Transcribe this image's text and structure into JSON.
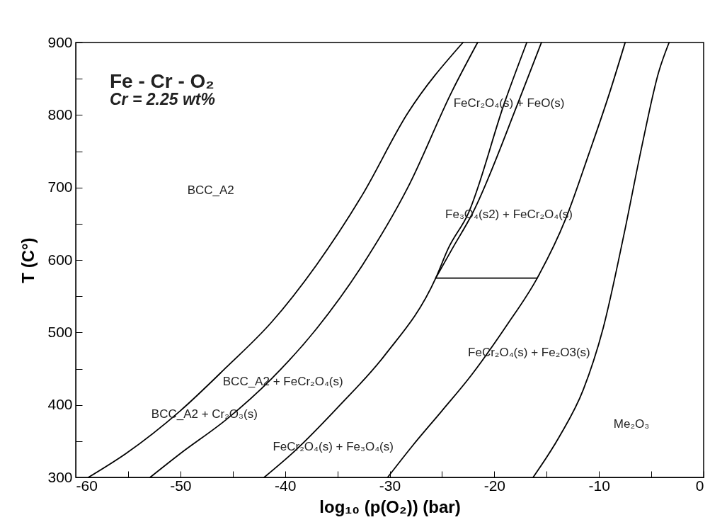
{
  "chart_data": {
    "type": "line",
    "title": "Fe - Cr - O₂",
    "subtitle": "Cr = 2.25 wt%",
    "xlabel": "log₁₀ (p(O₂)) (bar)",
    "ylabel": "T (C°)",
    "xlim": [
      -60,
      0
    ],
    "ylim": [
      300,
      900
    ],
    "xticks": [
      -60,
      {
        "value": -55,
        "label": null
      },
      -50,
      {
        "value": -45,
        "label": null
      },
      -40,
      {
        "value": -35,
        "label": null
      },
      -30,
      {
        "value": -25,
        "label": null
      },
      -20,
      {
        "value": -15,
        "label": null
      },
      -10,
      {
        "value": -5,
        "label": null
      },
      0
    ],
    "yticks": [
      300,
      {
        "value": 350,
        "label": null
      },
      400,
      {
        "value": 450,
        "label": null
      },
      500,
      {
        "value": 550,
        "label": null
      },
      600,
      {
        "value": 650,
        "label": null
      },
      700,
      {
        "value": 750,
        "label": null
      },
      800,
      {
        "value": 850,
        "label": null
      },
      900
    ],
    "grid": false,
    "legend": false,
    "marker": "none",
    "line_style": "solid",
    "series": [
      {
        "color": "#000000",
        "x": [
          -58.8,
          -55.2,
          -50.0,
          -45.6,
          -41.3,
          -37.0,
          -32.6,
          -28.3,
          -23.0
        ],
        "values": [
          300,
          333,
          392,
          452,
          514,
          593,
          690,
          802,
          900
        ]
      },
      {
        "color": "#000000",
        "x": [
          -52.9,
          -50.0,
          -45.6,
          -41.3,
          -37.0,
          -32.6,
          -28.3,
          -24.0,
          -21.6
        ],
        "values": [
          300,
          333,
          380,
          436,
          505,
          593,
          699,
          834,
          900
        ]
      },
      {
        "color": "#000000",
        "x": [
          -42.0,
          -39.1,
          -34.8,
          -30.5,
          -25.6,
          -24.4,
          -22.5,
          -19.0,
          -16.9
        ],
        "values": [
          300,
          336,
          399,
          468,
          575,
          616,
          664,
          818,
          900
        ]
      },
      {
        "color": "#000000",
        "x": [
          -25.6,
          -24.0,
          -22.1,
          -17.7,
          -15.5
        ],
        "values": [
          575,
          616,
          664,
          818,
          900
        ]
      },
      {
        "color": "#000000",
        "x": [
          -25.6,
          -15.9
        ],
        "values": [
          575,
          575
        ]
      },
      {
        "color": "#000000",
        "x": [
          -30.2,
          -27.8,
          -25.0,
          -22.2,
          -18.8,
          -15.9,
          -13.2,
          -11.0,
          -9.0,
          -7.5
        ],
        "values": [
          300,
          344,
          392,
          441,
          510,
          575,
          656,
          745,
          830,
          900
        ]
      },
      {
        "color": "#000000",
        "x": [
          -16.3,
          -13.8,
          -11.5,
          -9.6,
          -7.6,
          -5.9,
          -4.3,
          -3.3
        ],
        "values": [
          300,
          356,
          421,
          506,
          636,
          757,
          859,
          900
        ]
      }
    ],
    "annotations": [
      "BCC_A2",
      "BCC_A2 + Cr₂O₃(s)",
      "BCC_A2 + FeCr₂O₄(s)",
      "FeCr₂O₄(s) + Fe₃O₄(s)",
      "FeCr₂O₄(s) + FeO(s)",
      "Fe₃O₄(s2) + FeCr₂O₄(s)",
      "FeCr₂O₄(s) + Fe₂O3(s)",
      "Me₂O₃"
    ]
  }
}
